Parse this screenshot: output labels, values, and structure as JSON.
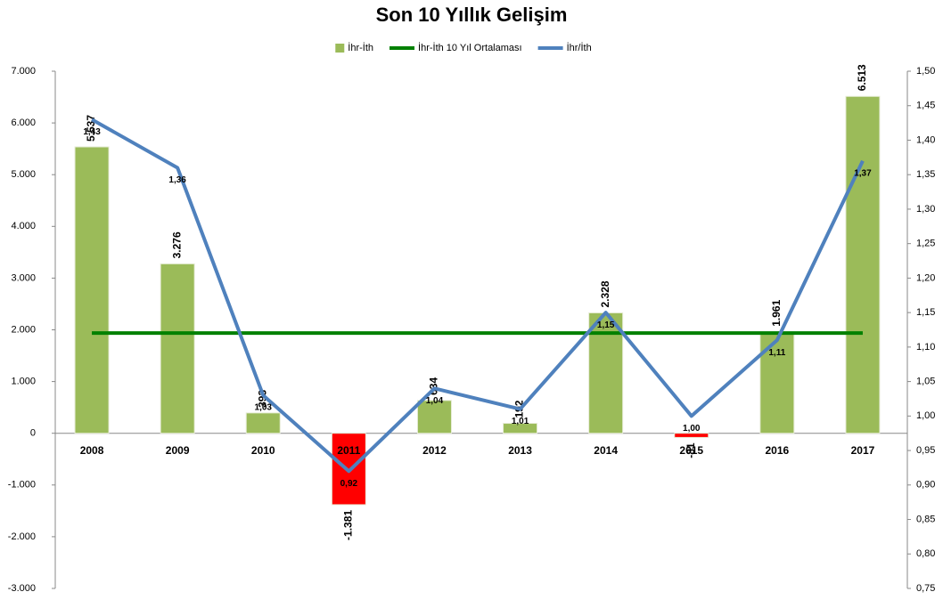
{
  "chart_data": {
    "type": "bar",
    "title": "Son 10 Yıllık Gelişim",
    "categories": [
      "2008",
      "2009",
      "2010",
      "2011",
      "2012",
      "2013",
      "2014",
      "2015",
      "2016",
      "2017"
    ],
    "series": [
      {
        "name": "İhr-İth",
        "type": "bar",
        "color": "#9bbb59",
        "colors": [
          "#9bbb59",
          "#9bbb59",
          "#9bbb59",
          "#ff0000",
          "#9bbb59",
          "#9bbb59",
          "#9bbb59",
          "#ff0000",
          "#9bbb59",
          "#9bbb59"
        ],
        "values": [
          5537,
          3276,
          393,
          -1381,
          634,
          192,
          2328,
          -81,
          1961,
          6513
        ],
        "value_labels": [
          "5.537",
          "3.276",
          "393",
          "-1.381",
          "634",
          "192",
          "2.328",
          "-81",
          "1.961",
          "6.513"
        ]
      },
      {
        "name": "İhr-İth 10 Yıl Ortalaması",
        "type": "line",
        "color": "#008000",
        "values": [
          1937.2,
          1937.2,
          1937.2,
          1937.2,
          1937.2,
          1937.2,
          1937.2,
          1937.2,
          1937.2,
          1937.2
        ]
      },
      {
        "name": "İhr/İth",
        "type": "line",
        "color": "#4f81bd",
        "axis": "y2",
        "values": [
          1.43,
          1.36,
          1.03,
          0.92,
          1.04,
          1.01,
          1.15,
          1.0,
          1.11,
          1.37
        ],
        "value_labels": [
          "1,43",
          "1,36",
          "1,03",
          "0,92",
          "1,04",
          "1,01",
          "1,15",
          "1,00",
          "1,11",
          "1,37"
        ]
      }
    ],
    "ylim": [
      -3000,
      7000
    ],
    "yticks": [
      {
        "value": -3000,
        "label": "-3.000"
      },
      {
        "value": -2000,
        "label": "-2.000"
      },
      {
        "value": -1000,
        "label": "-1.000"
      },
      0,
      {
        "value": 1000,
        "label": "1.000"
      },
      {
        "value": 2000,
        "label": "2.000"
      },
      {
        "value": 3000,
        "label": "3.000"
      },
      {
        "value": 4000,
        "label": "4.000"
      },
      {
        "value": 5000,
        "label": "5.000"
      },
      {
        "value": 6000,
        "label": "6.000"
      },
      {
        "value": 7000,
        "label": "7.000"
      }
    ],
    "y2lim": [
      0.75,
      1.5
    ],
    "y2ticks": [
      {
        "value": 0.75,
        "label": "0,75"
      },
      {
        "value": 0.8,
        "label": "0,80"
      },
      {
        "value": 0.85,
        "label": "0,85"
      },
      {
        "value": 0.9,
        "label": "0,90"
      },
      {
        "value": 0.95,
        "label": "0,95"
      },
      {
        "value": 1.0,
        "label": "1,00"
      },
      {
        "value": 1.05,
        "label": "1,05"
      },
      {
        "value": 1.1,
        "label": "1,10"
      },
      {
        "value": 1.15,
        "label": "1,15"
      },
      {
        "value": 1.2,
        "label": "1,20"
      },
      {
        "value": 1.25,
        "label": "1,25"
      },
      {
        "value": 1.3,
        "label": "1,30"
      },
      {
        "value": 1.35,
        "label": "1,35"
      },
      {
        "value": 1.4,
        "label": "1,40"
      },
      {
        "value": 1.45,
        "label": "1,45"
      },
      {
        "value": 1.5,
        "label": "1,50"
      }
    ],
    "grid": false
  }
}
